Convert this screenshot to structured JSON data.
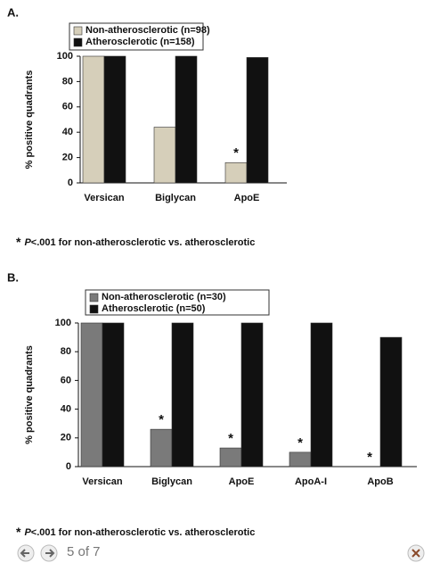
{
  "chart_data": [
    {
      "type": "bar",
      "label": "A.",
      "y_label": "% positive quadrants",
      "categories": [
        "Versican",
        "Biglycan",
        "ApoE"
      ],
      "series": [
        {
          "name": "Non-atherosclerotic (n=98)",
          "color": "#d6cfba",
          "values": [
            100,
            44,
            16
          ],
          "significance": [
            false,
            false,
            true
          ]
        },
        {
          "name": "Atherosclerotic (n=158)",
          "color": "#111111",
          "values": [
            100,
            100,
            99
          ]
        }
      ],
      "significance_marker": "*",
      "ylim": [
        0,
        100
      ],
      "yticks": [
        0,
        20,
        40,
        60,
        80,
        100
      ],
      "grid": false,
      "footnote": {
        "marker": "*",
        "stat": "P",
        "text": "<.001 for non-atherosclerotic vs. atherosclerotic"
      }
    },
    {
      "type": "bar",
      "label": "B.",
      "y_label": "% positive quadrants",
      "categories": [
        "Versican",
        "Biglycan",
        "ApoE",
        "ApoA-I",
        "ApoB"
      ],
      "series": [
        {
          "name": "Non-atherosclerotic (n=30)",
          "color": "#7a7a7a",
          "values": [
            100,
            26,
            13,
            10,
            0
          ],
          "significance": [
            false,
            true,
            true,
            true,
            true
          ]
        },
        {
          "name": "Atherosclerotic (n=50)",
          "color": "#111111",
          "values": [
            100,
            100,
            100,
            100,
            90
          ]
        }
      ],
      "significance_marker": "*",
      "ylim": [
        0,
        100
      ],
      "yticks": [
        0,
        20,
        40,
        60,
        80,
        100
      ],
      "grid": false,
      "footnote": {
        "marker": "*",
        "stat": "P",
        "text": "<.001 for non-atherosclerotic vs. atherosclerotic"
      }
    }
  ],
  "viewer": {
    "position": "5 of 7"
  }
}
